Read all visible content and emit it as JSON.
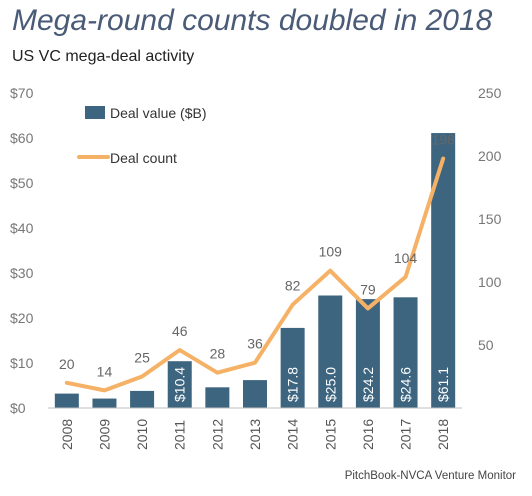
{
  "header": {
    "title": "Mega-round counts doubled in 2018",
    "subtitle": "US VC mega-deal activity"
  },
  "footer": {
    "source": "PitchBook-NVCA Venture Monitor"
  },
  "colors": {
    "bar": "#3d6580",
    "line": "#f5b266",
    "axis_text": "#777777"
  },
  "chart_data": {
    "type": "bar",
    "categories": [
      "2008",
      "2009",
      "2010",
      "2011",
      "2012",
      "2013",
      "2014",
      "2015",
      "2016",
      "2017",
      "2018"
    ],
    "series": [
      {
        "name": "Deal value ($B)",
        "type": "bar",
        "axis": "left",
        "values": [
          3.2,
          2.1,
          3.8,
          10.4,
          4.6,
          6.2,
          17.8,
          25.0,
          24.2,
          24.6,
          61.1
        ],
        "data_labels": [
          "",
          "",
          "",
          "$10.4",
          "",
          "",
          "$17.8",
          "$25.0",
          "$24.2",
          "$24.6",
          "$61.1"
        ]
      },
      {
        "name": "Deal count",
        "type": "line",
        "axis": "right",
        "values": [
          20,
          14,
          25,
          46,
          28,
          36,
          82,
          109,
          79,
          104,
          198
        ],
        "data_labels": [
          "20",
          "14",
          "25",
          "46",
          "28",
          "36",
          "82",
          "109",
          "79",
          "104",
          "198"
        ]
      }
    ],
    "y_left": {
      "ylim": [
        0,
        70
      ],
      "ticks": [
        0,
        10,
        20,
        30,
        40,
        50,
        60,
        70
      ],
      "tick_labels": [
        "$0",
        "$10",
        "$20",
        "$30",
        "$40",
        "$50",
        "$60",
        "$70"
      ]
    },
    "y_right": {
      "ylim": [
        0,
        250
      ],
      "ticks": [
        50,
        100,
        150,
        200,
        250
      ],
      "tick_labels": [
        "50",
        "100",
        "150",
        "200",
        "250"
      ]
    },
    "xlabel": "",
    "ylabel": "",
    "grid": false,
    "legend": "top-left"
  }
}
